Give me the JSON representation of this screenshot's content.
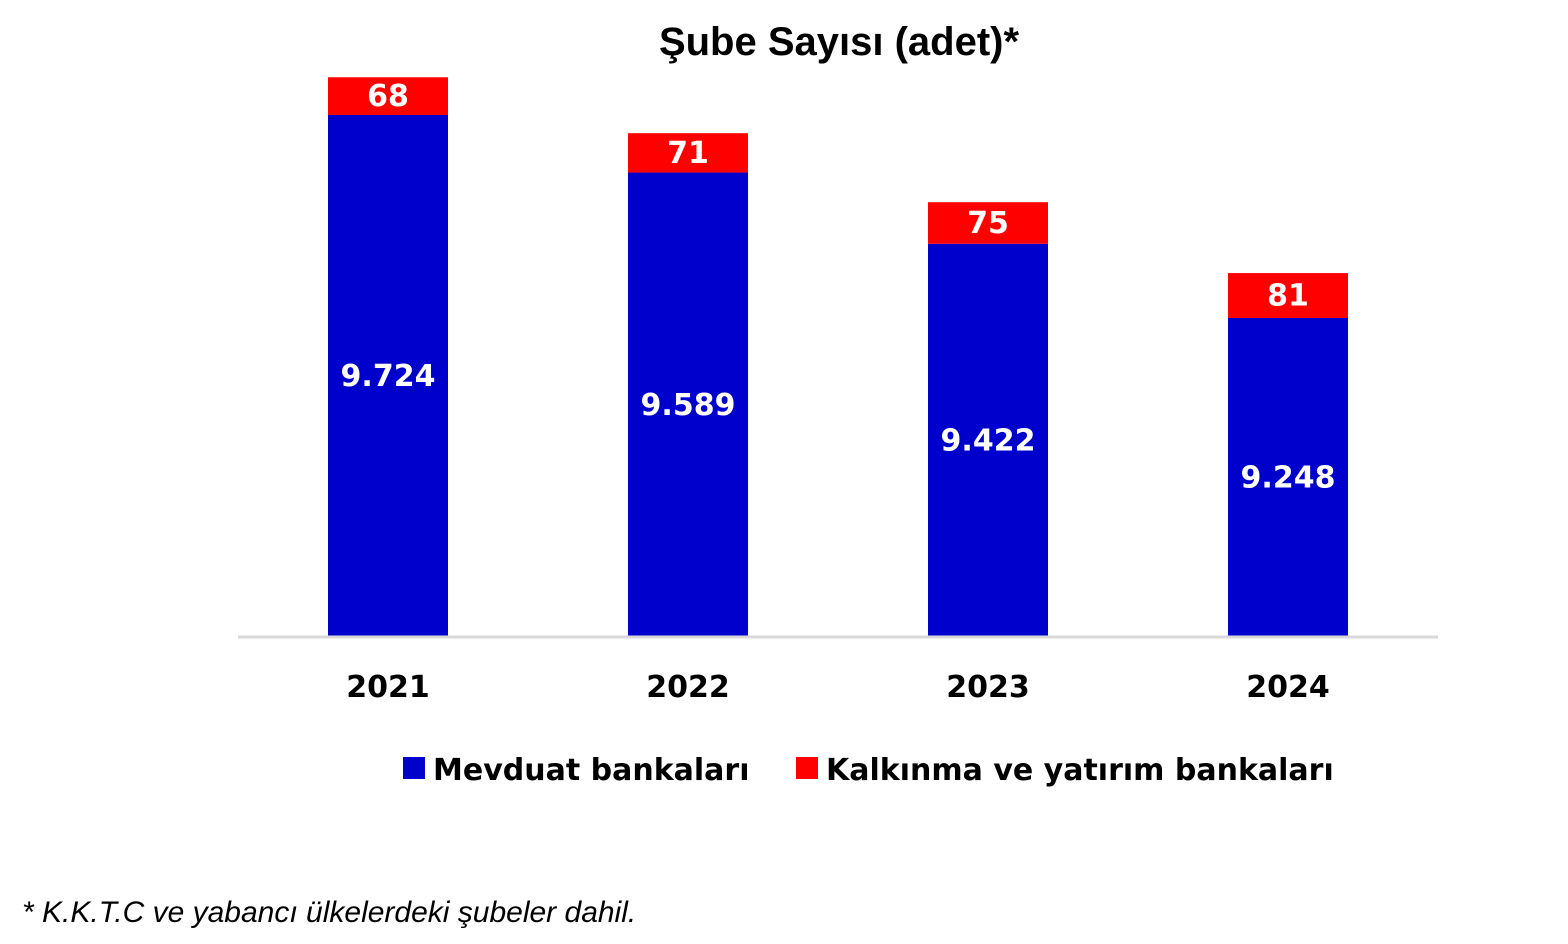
{
  "chart_data": {
    "type": "bar",
    "stacked": true,
    "title": "Şube Sayısı (adet)*",
    "categories": [
      "2021",
      "2022",
      "2023",
      "2024"
    ],
    "series": [
      {
        "name": "Mevduat bankaları",
        "values": [
          9724,
          9589,
          9422,
          9248
        ],
        "labels": [
          "9.724",
          "9.589",
          "9.422",
          "9.248"
        ],
        "color": "#0000CC"
      },
      {
        "name": "Kalkınma ve yatırım bankaları",
        "values": [
          68,
          71,
          75,
          81
        ],
        "labels": [
          "68",
          "71",
          "75",
          "81"
        ],
        "color": "#FF0000"
      }
    ],
    "legend_position": "bottom",
    "grid": false,
    "footnote": "* K.K.T.C ve yabancı ülkelerdeki şubeler dahil."
  }
}
